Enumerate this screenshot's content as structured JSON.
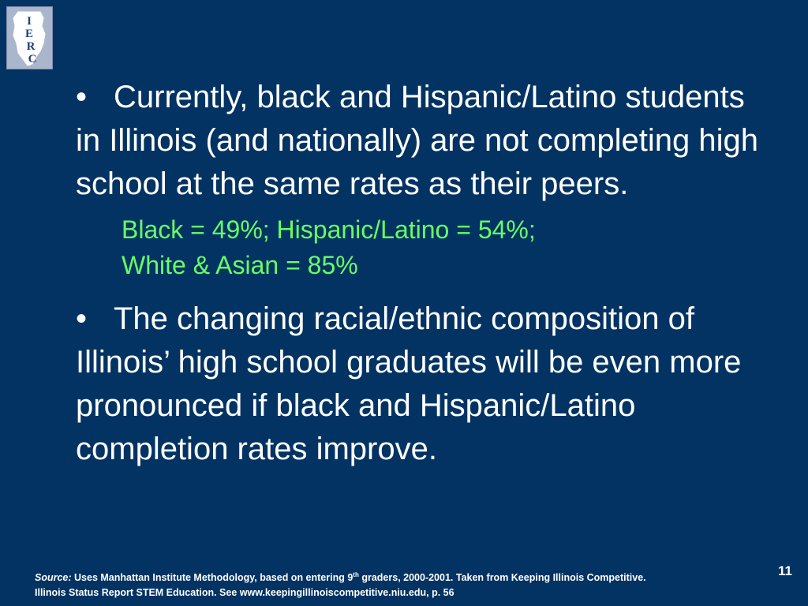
{
  "logo": {
    "letters": [
      "I",
      "E",
      "R",
      "C"
    ]
  },
  "bullets": [
    {
      "marker": "•",
      "text": "Currently, black and Hispanic/Latino students in Illinois (and nationally) are not completing high school at the same rates as their peers.",
      "sub_lines": [
        "Black = 49%; Hispanic/Latino = 54%;",
        "White & Asian = 85%"
      ]
    },
    {
      "marker": "•",
      "text": "The changing racial/ethnic composition of Illinois’ high school graduates will be even more pronounced if black and Hispanic/Latino completion rates improve."
    }
  ],
  "footer": {
    "source_label": "Source:",
    "source_text_1": " Uses Manhattan Institute Methodology, based on entering 9",
    "source_sup": "th",
    "source_text_2": " graders, 2000-2001. Taken from Keeping Illinois Competitive.",
    "source_line_2": "Illinois Status Report STEM Education. See  www.keepingillinoiscompetitive.niu.edu, p. 56",
    "page_number": "11"
  },
  "colors": {
    "background": "#033363",
    "text": "#ffffff",
    "highlight": "#66ff66"
  }
}
